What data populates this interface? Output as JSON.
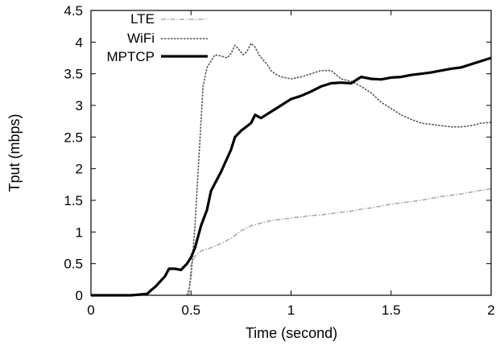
{
  "chart_data": {
    "type": "line",
    "xlabel": "Time (second)",
    "ylabel": "Tput (mbps)",
    "xlim": [
      0,
      2
    ],
    "ylim": [
      0,
      4.5
    ],
    "x_ticks": [
      0,
      0.5,
      1,
      1.5,
      2
    ],
    "x_tick_labels": [
      "0",
      "0.5",
      "1",
      "1.5",
      "2"
    ],
    "y_ticks": [
      0,
      0.5,
      1,
      1.5,
      2,
      2.5,
      3,
      3.5,
      4,
      4.5
    ],
    "y_tick_labels": [
      "0",
      "0.5",
      "1",
      "1.5",
      "2",
      "2.5",
      "3",
      "3.5",
      "4",
      "4.5"
    ],
    "grid": false,
    "legend_position": "top-left",
    "series": [
      {
        "name": "LTE",
        "color": "#aaaaaa",
        "style": "dash-dot",
        "x": [
          0.49,
          0.5,
          0.52,
          0.55,
          0.6,
          0.65,
          0.7,
          0.75,
          0.8,
          0.85,
          0.9,
          0.95,
          1.0,
          1.05,
          1.1,
          1.15,
          1.2,
          1.25,
          1.3,
          1.35,
          1.4,
          1.45,
          1.5,
          1.55,
          1.6,
          1.65,
          1.7,
          1.75,
          1.8,
          1.85,
          1.9,
          1.95,
          2.0
        ],
        "y": [
          0.0,
          0.48,
          0.62,
          0.7,
          0.75,
          0.82,
          0.9,
          1.02,
          1.1,
          1.14,
          1.18,
          1.2,
          1.22,
          1.24,
          1.26,
          1.27,
          1.29,
          1.31,
          1.33,
          1.36,
          1.38,
          1.41,
          1.44,
          1.46,
          1.48,
          1.5,
          1.53,
          1.56,
          1.58,
          1.6,
          1.63,
          1.66,
          1.68
        ]
      },
      {
        "name": "WiFi",
        "color": "#555555",
        "style": "dotted",
        "x": [
          0.48,
          0.49,
          0.5,
          0.52,
          0.54,
          0.56,
          0.58,
          0.6,
          0.62,
          0.65,
          0.68,
          0.7,
          0.72,
          0.74,
          0.76,
          0.78,
          0.8,
          0.82,
          0.84,
          0.86,
          0.88,
          0.9,
          0.92,
          0.95,
          1.0,
          1.05,
          1.1,
          1.15,
          1.2,
          1.25,
          1.3,
          1.35,
          1.4,
          1.45,
          1.5,
          1.55,
          1.6,
          1.65,
          1.7,
          1.75,
          1.8,
          1.85,
          1.9,
          1.95,
          2.0
        ],
        "y": [
          0.0,
          0.1,
          0.3,
          1.1,
          2.2,
          3.3,
          3.6,
          3.7,
          3.8,
          3.78,
          3.75,
          3.82,
          3.95,
          3.88,
          3.8,
          3.85,
          3.98,
          3.92,
          3.8,
          3.72,
          3.65,
          3.55,
          3.5,
          3.45,
          3.42,
          3.45,
          3.5,
          3.55,
          3.55,
          3.42,
          3.38,
          3.3,
          3.2,
          3.05,
          2.95,
          2.85,
          2.78,
          2.72,
          2.7,
          2.68,
          2.66,
          2.66,
          2.68,
          2.72,
          2.73
        ]
      },
      {
        "name": "MPTCP",
        "color": "#000000",
        "style": "solid-thick",
        "x": [
          0.0,
          0.1,
          0.2,
          0.28,
          0.3,
          0.32,
          0.37,
          0.39,
          0.42,
          0.45,
          0.48,
          0.5,
          0.52,
          0.55,
          0.58,
          0.6,
          0.65,
          0.7,
          0.72,
          0.75,
          0.8,
          0.82,
          0.85,
          0.9,
          0.95,
          1.0,
          1.05,
          1.1,
          1.15,
          1.2,
          1.25,
          1.3,
          1.35,
          1.4,
          1.45,
          1.5,
          1.55,
          1.6,
          1.65,
          1.7,
          1.75,
          1.8,
          1.85,
          1.9,
          1.95,
          2.0
        ],
        "y": [
          0.0,
          0.0,
          0.0,
          0.02,
          0.08,
          0.13,
          0.3,
          0.42,
          0.42,
          0.4,
          0.5,
          0.6,
          0.75,
          1.1,
          1.35,
          1.65,
          1.95,
          2.3,
          2.5,
          2.6,
          2.72,
          2.85,
          2.8,
          2.9,
          3.0,
          3.1,
          3.15,
          3.22,
          3.3,
          3.35,
          3.36,
          3.35,
          3.45,
          3.42,
          3.41,
          3.44,
          3.45,
          3.48,
          3.5,
          3.52,
          3.55,
          3.58,
          3.6,
          3.65,
          3.7,
          3.75
        ]
      }
    ]
  }
}
